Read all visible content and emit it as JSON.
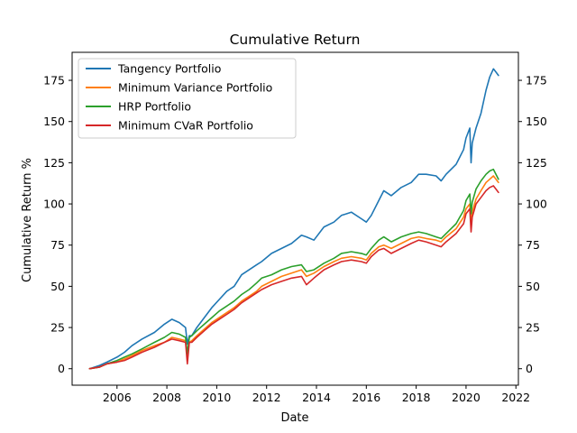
{
  "chart_data": {
    "type": "line",
    "title": "Cumulative Return",
    "xlabel": "Date",
    "ylabel": "Cumulative Return %",
    "xlim": [
      2004.2,
      2022.1
    ],
    "ylim": [
      -10,
      192
    ],
    "x_ticks": [
      2006,
      2008,
      2010,
      2012,
      2014,
      2016,
      2018,
      2020,
      2022
    ],
    "y_ticks": [
      0,
      25,
      50,
      75,
      100,
      125,
      150,
      175
    ],
    "grid": false,
    "legend_position": "top-left",
    "right_axis_ticks": true,
    "series": [
      {
        "name": "Tangency Portfolio",
        "color": "#1f77b4",
        "x": [
          2004.9,
          2005.3,
          2005.6,
          2006.0,
          2006.3,
          2006.6,
          2007.0,
          2007.5,
          2007.9,
          2008.2,
          2008.5,
          2008.75,
          2008.82,
          2008.9,
          2009.0,
          2009.2,
          2009.5,
          2009.8,
          2010.1,
          2010.4,
          2010.7,
          2011.0,
          2011.3,
          2011.6,
          2011.8,
          2012.2,
          2012.6,
          2013.0,
          2013.4,
          2013.6,
          2013.9,
          2014.3,
          2014.7,
          2015.0,
          2015.4,
          2015.8,
          2016.0,
          2016.2,
          2016.5,
          2016.7,
          2017.0,
          2017.4,
          2017.8,
          2018.1,
          2018.4,
          2018.8,
          2019.0,
          2019.2,
          2019.6,
          2019.9,
          2020.0,
          2020.15,
          2020.2,
          2020.25,
          2020.4,
          2020.6,
          2020.8,
          2020.95,
          2021.1,
          2021.2,
          2021.3
        ],
        "values": [
          0,
          2,
          4,
          7,
          10,
          14,
          18,
          22,
          27,
          30,
          28,
          25,
          15,
          20,
          20,
          25,
          31,
          37,
          42,
          47,
          50,
          57,
          60,
          63,
          65,
          70,
          73,
          76,
          81,
          80,
          78,
          86,
          89,
          93,
          95,
          91,
          89,
          93,
          102,
          108,
          105,
          110,
          113,
          118,
          118,
          117,
          114,
          118,
          124,
          133,
          140,
          146,
          125,
          137,
          146,
          155,
          169,
          177,
          182,
          180,
          178
        ]
      },
      {
        "name": "Minimum Variance Portfolio",
        "color": "#ff7f0e",
        "x": [
          2004.9,
          2005.3,
          2005.6,
          2006.0,
          2006.3,
          2006.6,
          2007.0,
          2007.5,
          2007.9,
          2008.2,
          2008.5,
          2008.75,
          2008.82,
          2008.9,
          2009.0,
          2009.2,
          2009.5,
          2009.8,
          2010.1,
          2010.4,
          2010.7,
          2011.0,
          2011.3,
          2011.6,
          2011.8,
          2012.2,
          2012.6,
          2013.0,
          2013.4,
          2013.6,
          2013.9,
          2014.3,
          2014.7,
          2015.0,
          2015.4,
          2015.8,
          2016.0,
          2016.2,
          2016.5,
          2016.7,
          2017.0,
          2017.4,
          2017.8,
          2018.1,
          2018.4,
          2018.8,
          2019.0,
          2019.2,
          2019.6,
          2019.9,
          2020.0,
          2020.15,
          2020.2,
          2020.25,
          2020.4,
          2020.6,
          2020.8,
          2020.95,
          2021.1,
          2021.2,
          2021.3
        ],
        "values": [
          0,
          1,
          3,
          4,
          6,
          8,
          11,
          14,
          16,
          19,
          18,
          17,
          7,
          16,
          17,
          20,
          24,
          28,
          31,
          34,
          37,
          41,
          44,
          47,
          50,
          53,
          56,
          58,
          60,
          56,
          58,
          62,
          65,
          67,
          68,
          67,
          66,
          70,
          74,
          75,
          73,
          76,
          79,
          80,
          79,
          78,
          77,
          80,
          85,
          92,
          97,
          100,
          87,
          95,
          103,
          108,
          113,
          115,
          117,
          115,
          113
        ]
      },
      {
        "name": "HRP Portfolio",
        "color": "#2ca02c",
        "x": [
          2004.9,
          2005.3,
          2005.6,
          2006.0,
          2006.3,
          2006.6,
          2007.0,
          2007.5,
          2007.9,
          2008.2,
          2008.5,
          2008.75,
          2008.82,
          2008.9,
          2009.0,
          2009.2,
          2009.5,
          2009.8,
          2010.1,
          2010.4,
          2010.7,
          2011.0,
          2011.3,
          2011.6,
          2011.8,
          2012.2,
          2012.6,
          2013.0,
          2013.4,
          2013.6,
          2013.9,
          2014.3,
          2014.7,
          2015.0,
          2015.4,
          2015.8,
          2016.0,
          2016.2,
          2016.5,
          2016.7,
          2017.0,
          2017.4,
          2017.8,
          2018.1,
          2018.4,
          2018.8,
          2019.0,
          2019.2,
          2019.6,
          2019.9,
          2020.0,
          2020.15,
          2020.2,
          2020.25,
          2020.4,
          2020.6,
          2020.8,
          2020.95,
          2021.1,
          2021.2,
          2021.3
        ],
        "values": [
          0,
          1,
          3,
          5,
          7,
          9,
          12,
          16,
          19,
          22,
          21,
          19,
          9,
          19,
          20,
          23,
          27,
          31,
          35,
          38,
          41,
          45,
          48,
          52,
          55,
          57,
          60,
          62,
          63,
          59,
          60,
          64,
          67,
          70,
          71,
          70,
          69,
          73,
          78,
          80,
          77,
          80,
          82,
          83,
          82,
          80,
          79,
          82,
          88,
          96,
          102,
          106,
          94,
          101,
          109,
          114,
          118,
          120,
          121,
          118,
          115
        ]
      },
      {
        "name": "Minimum CVaR Portfolio",
        "color": "#d62728",
        "x": [
          2004.9,
          2005.3,
          2005.6,
          2006.0,
          2006.3,
          2006.6,
          2007.0,
          2007.5,
          2007.9,
          2008.2,
          2008.5,
          2008.75,
          2008.82,
          2008.9,
          2009.0,
          2009.2,
          2009.5,
          2009.8,
          2010.1,
          2010.4,
          2010.7,
          2011.0,
          2011.3,
          2011.6,
          2011.8,
          2012.2,
          2012.6,
          2013.0,
          2013.4,
          2013.6,
          2013.9,
          2014.3,
          2014.7,
          2015.0,
          2015.4,
          2015.8,
          2016.0,
          2016.2,
          2016.5,
          2016.7,
          2017.0,
          2017.4,
          2017.8,
          2018.1,
          2018.4,
          2018.8,
          2019.0,
          2019.2,
          2019.6,
          2019.9,
          2020.0,
          2020.15,
          2020.2,
          2020.25,
          2020.4,
          2020.6,
          2020.8,
          2020.95,
          2021.1,
          2021.2,
          2021.3
        ],
        "values": [
          0,
          1,
          3,
          4,
          5,
          7,
          10,
          13,
          16,
          18,
          17,
          16,
          3,
          16,
          16,
          19,
          23,
          27,
          30,
          33,
          36,
          40,
          43,
          46,
          48,
          51,
          53,
          55,
          56,
          51,
          55,
          60,
          63,
          65,
          66,
          65,
          64,
          68,
          72,
          73,
          70,
          73,
          76,
          78,
          77,
          75,
          74,
          77,
          82,
          88,
          94,
          97,
          83,
          92,
          100,
          104,
          108,
          110,
          111,
          109,
          107
        ]
      }
    ]
  }
}
